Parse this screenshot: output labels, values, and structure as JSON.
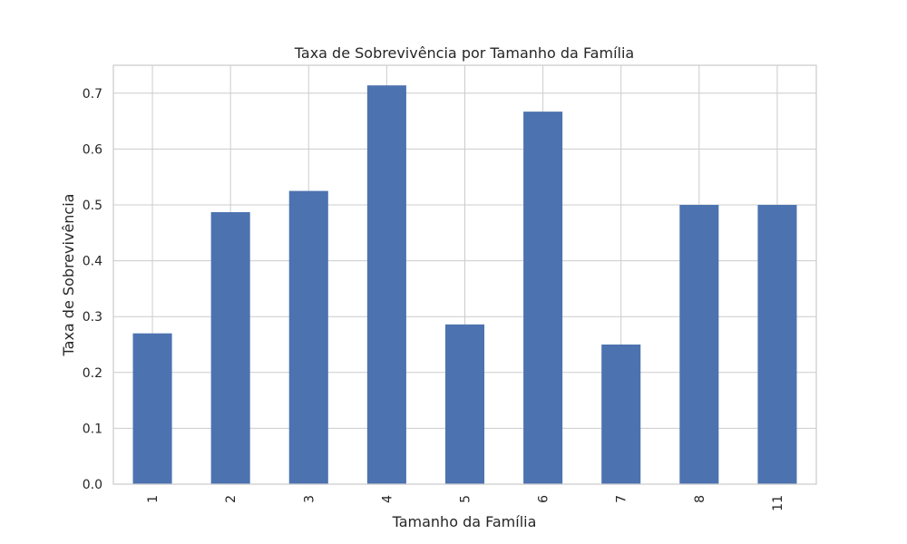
{
  "chart_data": {
    "type": "bar",
    "title": "Taxa de Sobrevivência por Tamanho da Família",
    "xlabel": "Tamanho da Família",
    "ylabel": "Taxa de Sobrevivência",
    "categories": [
      "1",
      "2",
      "3",
      "4",
      "5",
      "6",
      "7",
      "8",
      "11"
    ],
    "values": [
      0.27,
      0.487,
      0.525,
      0.714,
      0.286,
      0.667,
      0.25,
      0.5,
      0.5
    ],
    "ylim": [
      0,
      0.75
    ],
    "yticks": [
      0.0,
      0.1,
      0.2,
      0.3,
      0.4,
      0.5,
      0.6,
      0.7
    ],
    "ytick_labels": [
      "0.0",
      "0.1",
      "0.2",
      "0.3",
      "0.4",
      "0.5",
      "0.6",
      "0.7"
    ],
    "grid": true,
    "legend": "none",
    "xtick_rotation": "vertical"
  },
  "colors": {
    "bar": "#4c72b0",
    "grid": "#cccccc",
    "axes_edge": "#cccccc",
    "text": "#262626",
    "background": "#ffffff"
  }
}
